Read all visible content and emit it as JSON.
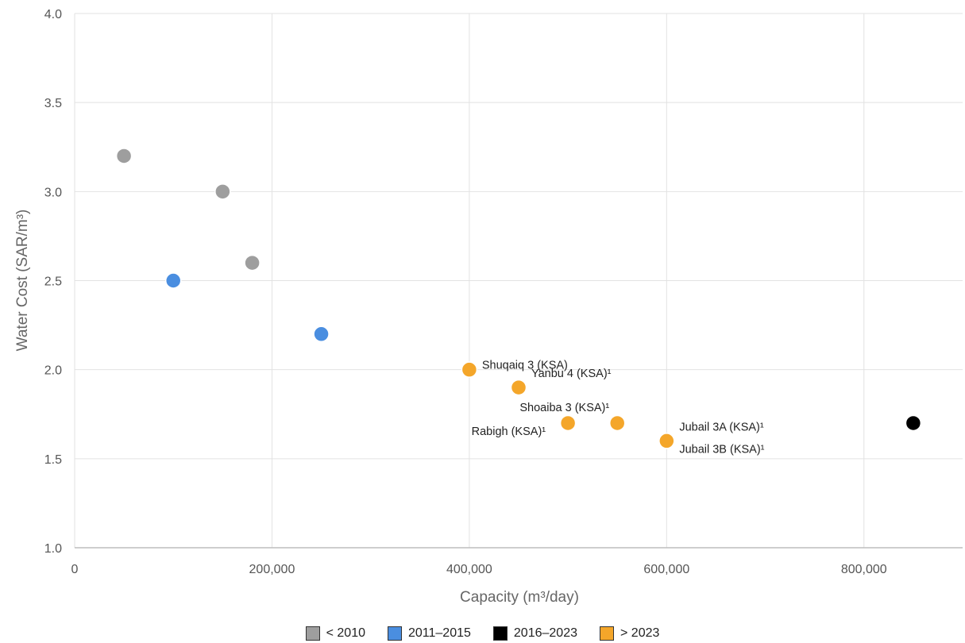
{
  "chart_data": {
    "type": "scatter",
    "xlabel": "Capacity (m³/day)",
    "ylabel": "Water Cost (SAR/m³)",
    "xlim": [
      0,
      900000
    ],
    "ylim": [
      1.0,
      4.0
    ],
    "x_ticks": [
      {
        "value": 0,
        "label": "0"
      },
      {
        "value": 200000,
        "label": "200,000"
      },
      {
        "value": 400000,
        "label": "400,000"
      },
      {
        "value": 600000,
        "label": "600,000"
      },
      {
        "value": 800000,
        "label": "800,000"
      }
    ],
    "y_ticks": [
      {
        "value": 1.0,
        "label": "1.0"
      },
      {
        "value": 1.5,
        "label": "1.5"
      },
      {
        "value": 2.0,
        "label": "2.0"
      },
      {
        "value": 2.5,
        "label": "2.5"
      },
      {
        "value": 3.0,
        "label": "3.0"
      },
      {
        "value": 3.5,
        "label": "3.5"
      },
      {
        "value": 4.0,
        "label": "4.0"
      }
    ],
    "grid": true,
    "legend_position": "bottom",
    "series": [
      {
        "name": "< 2010",
        "color": "#9e9e9e",
        "points": [
          {
            "x": 50000,
            "y": 3.2,
            "label": ""
          },
          {
            "x": 150000,
            "y": 3.0,
            "label": ""
          },
          {
            "x": 180000,
            "y": 2.6,
            "label": ""
          }
        ]
      },
      {
        "name": "2011–2015",
        "color": "#4a8ee0",
        "points": [
          {
            "x": 100000,
            "y": 2.5,
            "label": ""
          },
          {
            "x": 250000,
            "y": 2.2,
            "label": ""
          }
        ]
      },
      {
        "name": "2016–2023",
        "color": "#000000",
        "points": [
          {
            "x": 850000,
            "y": 1.7,
            "label": ""
          }
        ]
      },
      {
        "name": "> 2023",
        "color": "#f4a62a",
        "points": [
          {
            "x": 400000,
            "y": 2.0,
            "label": "Shuqaiq 3 (KSA)",
            "anchor": "right"
          },
          {
            "x": 450000,
            "y": 1.9,
            "label": "Yanbu 4 (KSA)¹",
            "anchor": "upper-right"
          },
          {
            "x": 500000,
            "y": 1.7,
            "label": "Rabigh (KSA)¹",
            "anchor": "lower-left"
          },
          {
            "x": 550000,
            "y": 1.7,
            "label": "Shoaiba 3 (KSA)¹",
            "anchor": "upper-left"
          },
          {
            "x": 600000,
            "y": 1.6,
            "label": "Jubail 3A (KSA)¹",
            "anchor": "upper-right"
          },
          {
            "x": 600000,
            "y": 1.6,
            "label": "Jubail 3B (KSA)¹",
            "anchor": "lower-right"
          }
        ]
      }
    ]
  }
}
